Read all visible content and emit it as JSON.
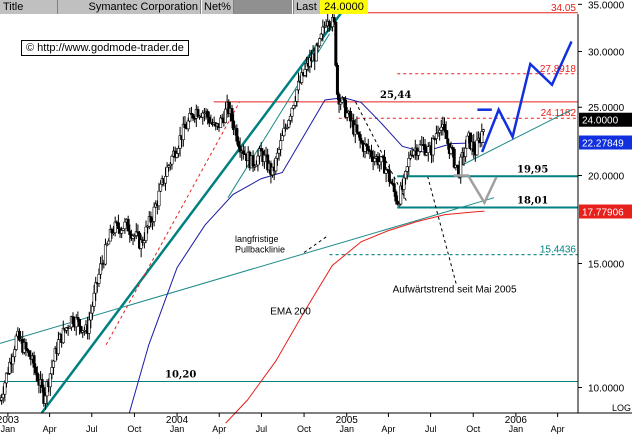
{
  "header": {
    "title_tab": "Title",
    "symbol": "Symantec Corporation",
    "net_tab": "Net%",
    "last_label": "Last",
    "last_value": "24.0000"
  },
  "colors": {
    "background": "#ffffff",
    "candle": "#000000",
    "ema200": "#e8201c",
    "ema50": "#1a1aa6",
    "trend_thick": "#008080",
    "trend_thin": "#1f8a8a",
    "projection": "#1030e0",
    "projection_gray": "#a0a0a0",
    "last_price_box": "#000000",
    "ema50_box": "#1030e0",
    "ema200_box": "#e8201c"
  },
  "chart_data": {
    "type": "candlestick",
    "y_scale": "log",
    "ylim": [
      9.2,
      35.5
    ],
    "x_range": [
      "2002-12-15",
      "2006-05-15"
    ],
    "y_ticks": [
      10,
      15,
      20,
      25,
      30,
      35
    ],
    "y_tick_labels": [
      "10.0000",
      "15.0000",
      "20.0000",
      "25.0000",
      "30.0000",
      "35.0000"
    ],
    "x_ticks": [
      {
        "date": "2003-01-01",
        "month": "Jan",
        "year": "2003"
      },
      {
        "date": "2003-04-01",
        "month": "Apr"
      },
      {
        "date": "2003-07-01",
        "month": "Jul"
      },
      {
        "date": "2003-10-01",
        "month": "Oct"
      },
      {
        "date": "2004-01-01",
        "month": "Jan",
        "year": "2004"
      },
      {
        "date": "2004-04-01",
        "month": "Apr"
      },
      {
        "date": "2004-07-01",
        "month": "Jul"
      },
      {
        "date": "2004-10-01",
        "month": "Oct"
      },
      {
        "date": "2005-01-01",
        "month": "Jan",
        "year": "2005"
      },
      {
        "date": "2005-04-01",
        "month": "Apr"
      },
      {
        "date": "2005-07-01",
        "month": "Jul"
      },
      {
        "date": "2005-10-01",
        "month": "Oct"
      },
      {
        "date": "2006-01-01",
        "month": "Jan",
        "year": "2006"
      },
      {
        "date": "2006-04-01",
        "month": "Apr"
      }
    ],
    "scale_label": "LOG",
    "price_path": [
      [
        "2002-12-15",
        9.6
      ],
      [
        "2003-01-20",
        11.8
      ],
      [
        "2003-02-20",
        11.0
      ],
      [
        "2003-03-20",
        9.7
      ],
      [
        "2003-04-20",
        11.6
      ],
      [
        "2003-05-20",
        12.6
      ],
      [
        "2003-06-20",
        12.0
      ],
      [
        "2003-07-20",
        14.8
      ],
      [
        "2003-08-15",
        16.8
      ],
      [
        "2003-09-15",
        17.0
      ],
      [
        "2003-10-15",
        16.0
      ],
      [
        "2003-11-10",
        17.6
      ],
      [
        "2003-12-10",
        20.4
      ],
      [
        "2004-01-10",
        22.8
      ],
      [
        "2004-02-10",
        24.8
      ],
      [
        "2004-03-01",
        24.6
      ],
      [
        "2004-03-25",
        23.2
      ],
      [
        "2004-04-20",
        25.0
      ],
      [
        "2004-05-15",
        22.2
      ],
      [
        "2004-06-10",
        20.8
      ],
      [
        "2004-07-01",
        21.5
      ],
      [
        "2004-07-25",
        20.1
      ],
      [
        "2004-08-20",
        23.2
      ],
      [
        "2004-09-15",
        26.4
      ],
      [
        "2004-10-10",
        28.8
      ],
      [
        "2004-11-01",
        30.2
      ],
      [
        "2004-11-20",
        33.8
      ],
      [
        "2004-12-05",
        32.6
      ],
      [
        "2004-12-12",
        26.2
      ],
      [
        "2005-01-05",
        24.2
      ],
      [
        "2005-02-01",
        22.2
      ],
      [
        "2005-03-01",
        21.3
      ],
      [
        "2005-03-25",
        20.6
      ],
      [
        "2005-04-20",
        18.4
      ],
      [
        "2005-05-05",
        19.4
      ],
      [
        "2005-05-20",
        21.8
      ],
      [
        "2005-06-15",
        22.0
      ],
      [
        "2005-07-01",
        21.6
      ],
      [
        "2005-07-20",
        23.8
      ],
      [
        "2005-08-10",
        22.0
      ],
      [
        "2005-08-30",
        20.2
      ],
      [
        "2005-09-20",
        22.6
      ],
      [
        "2005-10-05",
        21.6
      ],
      [
        "2005-10-25",
        23.6
      ]
    ],
    "ema200": [
      [
        "2004-04-15",
        8.9
      ],
      [
        "2004-06-01",
        9.6
      ],
      [
        "2004-08-01",
        10.9
      ],
      [
        "2004-10-01",
        12.8
      ],
      [
        "2004-12-01",
        14.9
      ],
      [
        "2005-02-01",
        16.1
      ],
      [
        "2005-04-01",
        16.7
      ],
      [
        "2005-06-01",
        17.2
      ],
      [
        "2005-08-01",
        17.6
      ],
      [
        "2005-10-01",
        17.75
      ],
      [
        "2005-10-25",
        17.8
      ]
    ],
    "ema50": [
      [
        "2003-09-20",
        9.2
      ],
      [
        "2003-11-01",
        11.5
      ],
      [
        "2004-01-01",
        14.8
      ],
      [
        "2004-03-01",
        17.0
      ],
      [
        "2004-05-01",
        18.8
      ],
      [
        "2004-07-01",
        19.8
      ],
      [
        "2004-08-15",
        20.2
      ],
      [
        "2004-10-01",
        22.8
      ],
      [
        "2004-11-15",
        25.6
      ],
      [
        "2004-12-25",
        25.8
      ],
      [
        "2005-02-01",
        25.4
      ],
      [
        "2005-03-15",
        23.8
      ],
      [
        "2005-05-01",
        22.0
      ],
      [
        "2005-06-15",
        21.6
      ],
      [
        "2005-08-15",
        22.2
      ],
      [
        "2005-10-25",
        22.28
      ]
    ],
    "horizontal_levels": [
      {
        "value": 34.05,
        "label": "34.05",
        "style": "solid",
        "color": "#e8201c",
        "from": "2004-11-20",
        "label_box": false
      },
      {
        "value": 27.8918,
        "label": "27.8918",
        "style": "dashed",
        "color": "#e8201c",
        "from": "2005-04-20",
        "label_box": false
      },
      {
        "value": 25.44,
        "label": "25,44",
        "style": "solid",
        "color": "#e8201c",
        "from": "2004-03-20",
        "bold_label": true
      },
      {
        "value": 24.1182,
        "label": "24.1182",
        "style": "dashed",
        "color": "#e8201c",
        "from": "2004-12-15",
        "label_box": false
      },
      {
        "value": 19.95,
        "label": "19,95",
        "style": "solid",
        "color": "#008080",
        "width": 2,
        "from": "2005-04-20",
        "bold_label": true
      },
      {
        "value": 18.01,
        "label": "18,01",
        "style": "solid",
        "color": "#008080",
        "width": 2,
        "from": "2005-04-20",
        "bold_label": true
      },
      {
        "value": 15.4436,
        "label": "15.4436",
        "style": "dashed",
        "color": "#008080",
        "from": "2004-11-25",
        "label_box": false
      },
      {
        "value": 10.2,
        "label": "10,20",
        "style": "solid",
        "color": "#008080",
        "from": "2002-12-15",
        "bold_label": true
      }
    ],
    "price_boxes": [
      {
        "value": 24.0,
        "label": "24.0000",
        "box": "last"
      },
      {
        "value": 22.27849,
        "label": "22.27849",
        "box": "ema50"
      },
      {
        "value": 17.77906,
        "label": "17.77906",
        "box": "ema200"
      }
    ],
    "trend_lines": [
      {
        "name": "steep",
        "from": [
          "2003-03-15",
          9.2
        ],
        "to": [
          "2005-01-10",
          35.5
        ],
        "width": 2.5
      },
      {
        "name": "pullback",
        "from": [
          "2002-12-15",
          11.55
        ],
        "to": [
          "2005-11-15",
          18.6
        ],
        "width": 1
      },
      {
        "name": "uptrend-2005",
        "from": [
          "2005-09-01",
          20.6
        ],
        "to": [
          "2006-05-01",
          24.8
        ],
        "width": 1
      },
      {
        "name": "inner-trend",
        "from": [
          "2004-04-20",
          18.6
        ],
        "to": [
          "2004-11-25",
          31.8
        ],
        "width": 1
      }
    ],
    "red_dashed_projection": [
      [
        "2003-08-01",
        11.5
      ],
      [
        "2004-05-15",
        25.44
      ]
    ],
    "dashed_guides": [
      {
        "from": [
          "2005-01-20",
          25.44
        ],
        "to": [
          "2005-05-10",
          18.4
        ]
      },
      {
        "from": [
          "2004-11-25",
          15.4436
        ],
        "to": [
          "2006-05-15",
          15.4436
        ]
      }
    ],
    "blue_projection": [
      [
        "2005-10-20",
        21.6
      ],
      [
        "2005-11-25",
        24.8
      ],
      [
        "2005-12-25",
        22.7
      ],
      [
        "2006-02-01",
        28.8
      ],
      [
        "2006-03-20",
        26.9
      ],
      [
        "2006-05-01",
        31.0
      ]
    ],
    "blue_projection_upper": [
      [
        "2005-10-10",
        24.8
      ],
      [
        "2005-11-10",
        24.8
      ]
    ],
    "gray_projection": [
      [
        "2005-08-20",
        20.0
      ],
      [
        "2005-09-20",
        20.0
      ],
      [
        "2005-10-25",
        18.3
      ],
      [
        "2005-11-20",
        19.9
      ]
    ],
    "annotations": [
      {
        "text": "langfristige",
        "at": [
          "2004-05-05",
          16.1
        ]
      },
      {
        "text": "Pullbacklinie",
        "at": [
          "2004-05-05",
          15.55
        ]
      },
      {
        "text": "EMA 200",
        "at": [
          "2004-07-20",
          12.7
        ]
      },
      {
        "text": "Aufwärtstrend seit Mai 2005",
        "at": [
          "2005-04-10",
          13.65
        ]
      }
    ],
    "pointer_lines": [
      {
        "from": [
          "2004-10-01",
          15.55
        ],
        "to": [
          "2004-11-20",
          16.4
        ]
      },
      {
        "from": [
          "2005-08-25",
          14.05
        ],
        "to": [
          "2005-06-25",
          19.9
        ]
      }
    ]
  },
  "watermark": "© http://www.godmode-trader.de"
}
